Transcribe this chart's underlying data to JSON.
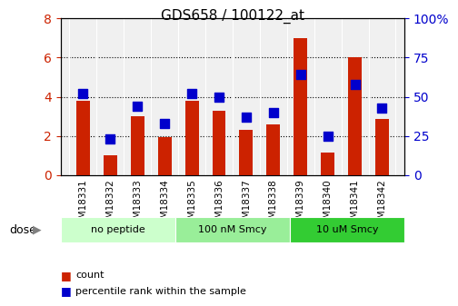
{
  "title": "GDS658 / 100122_at",
  "samples": [
    "GSM18331",
    "GSM18332",
    "GSM18333",
    "GSM18334",
    "GSM18335",
    "GSM18336",
    "GSM18337",
    "GSM18338",
    "GSM18339",
    "GSM18340",
    "GSM18341",
    "GSM18342"
  ],
  "counts": [
    3.8,
    1.0,
    3.0,
    1.95,
    3.8,
    3.3,
    2.3,
    2.6,
    7.0,
    1.15,
    6.0,
    2.85
  ],
  "percentiles": [
    52,
    23,
    44,
    33,
    52,
    50,
    37,
    40,
    64,
    25,
    58,
    43
  ],
  "groups": [
    {
      "label": "no peptide",
      "start": 0,
      "end": 4,
      "color": "#ccffcc"
    },
    {
      "label": "100 nM Smcy",
      "start": 4,
      "end": 8,
      "color": "#99ee99"
    },
    {
      "label": "10 uM Smcy",
      "start": 8,
      "end": 12,
      "color": "#33cc33"
    }
  ],
  "bar_color": "#cc2200",
  "dot_color": "#0000cc",
  "ylim_left": [
    0,
    8
  ],
  "ylim_right": [
    0,
    100
  ],
  "yticks_left": [
    0,
    2,
    4,
    6,
    8
  ],
  "yticks_right": [
    0,
    25,
    50,
    75,
    100
  ],
  "yticklabels_right": [
    "0",
    "25",
    "50",
    "75",
    "100%"
  ],
  "grid_values": [
    2,
    4,
    6
  ],
  "bar_width": 0.5,
  "dot_size": 60,
  "xlabel": "dose",
  "bg_color": "#f0f0f0"
}
